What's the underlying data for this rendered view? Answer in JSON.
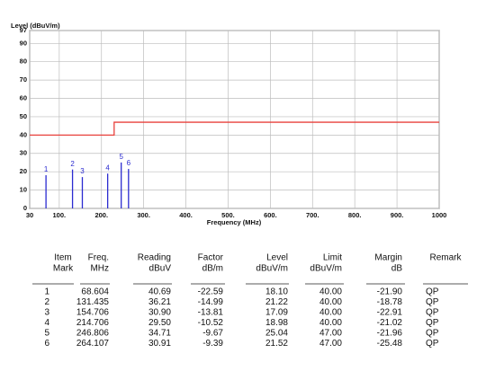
{
  "chart_data": {
    "type": "line",
    "title": "Level (dBuV/m)",
    "x_label": "Frequency (MHz)",
    "xlim": [
      30,
      1000
    ],
    "xticks": [
      30,
      {
        "value": 100,
        "label": "100."
      },
      {
        "value": 200,
        "label": "200."
      },
      {
        "value": 300,
        "label": "300."
      },
      {
        "value": 400,
        "label": "400."
      },
      {
        "value": 500,
        "label": "500."
      },
      {
        "value": 600,
        "label": "600."
      },
      {
        "value": 700,
        "label": "700."
      },
      {
        "value": 800,
        "label": "800."
      },
      {
        "value": 900,
        "label": "900."
      },
      1000
    ],
    "ylim": [
      0,
      97
    ],
    "yticks": [
      0,
      10,
      20,
      30,
      40,
      50,
      60,
      70,
      80,
      90,
      97
    ],
    "grid": true,
    "series": [
      {
        "type": "line",
        "color": "#e8413c",
        "x": [
          30,
          230,
          230,
          1000
        ],
        "values": [
          40,
          40,
          47,
          47
        ]
      },
      {
        "type": "stem",
        "color": "#2b2bd0",
        "x": [
          68.604,
          131.435,
          154.706,
          214.706,
          246.806,
          264.107
        ],
        "values": [
          18.1,
          21.22,
          17.09,
          18.98,
          25.04,
          21.52
        ],
        "labels": [
          "1",
          "2",
          "3",
          "4",
          "5",
          "6"
        ]
      }
    ]
  },
  "table": {
    "header": [
      [
        "Item",
        "Mark"
      ],
      [
        "Freq.",
        "MHz"
      ],
      [
        "Reading",
        "dBuV"
      ],
      [
        "Factor",
        "dB/m"
      ],
      [
        "Level",
        "dBuV/m"
      ],
      [
        "Limit",
        "dBuV/m"
      ],
      [
        "Margin",
        "dB"
      ],
      [
        "Remark"
      ]
    ],
    "rows": [
      [
        "1",
        "68.604",
        "40.69",
        "-22.59",
        "18.10",
        "40.00",
        "-21.90",
        "QP"
      ],
      [
        "2",
        "131.435",
        "36.21",
        "-14.99",
        "21.22",
        "40.00",
        "-18.78",
        "QP"
      ],
      [
        "3",
        "154.706",
        "30.90",
        "-13.81",
        "17.09",
        "40.00",
        "-22.91",
        "QP"
      ],
      [
        "4",
        "214.706",
        "29.50",
        "-10.52",
        "18.98",
        "40.00",
        "-21.02",
        "QP"
      ],
      [
        "5",
        "246.806",
        "34.71",
        "-9.67",
        "25.04",
        "47.00",
        "-21.96",
        "QP"
      ],
      [
        "6",
        "264.107",
        "30.91",
        "-9.39",
        "21.52",
        "47.00",
        "-25.48",
        "QP"
      ]
    ]
  }
}
